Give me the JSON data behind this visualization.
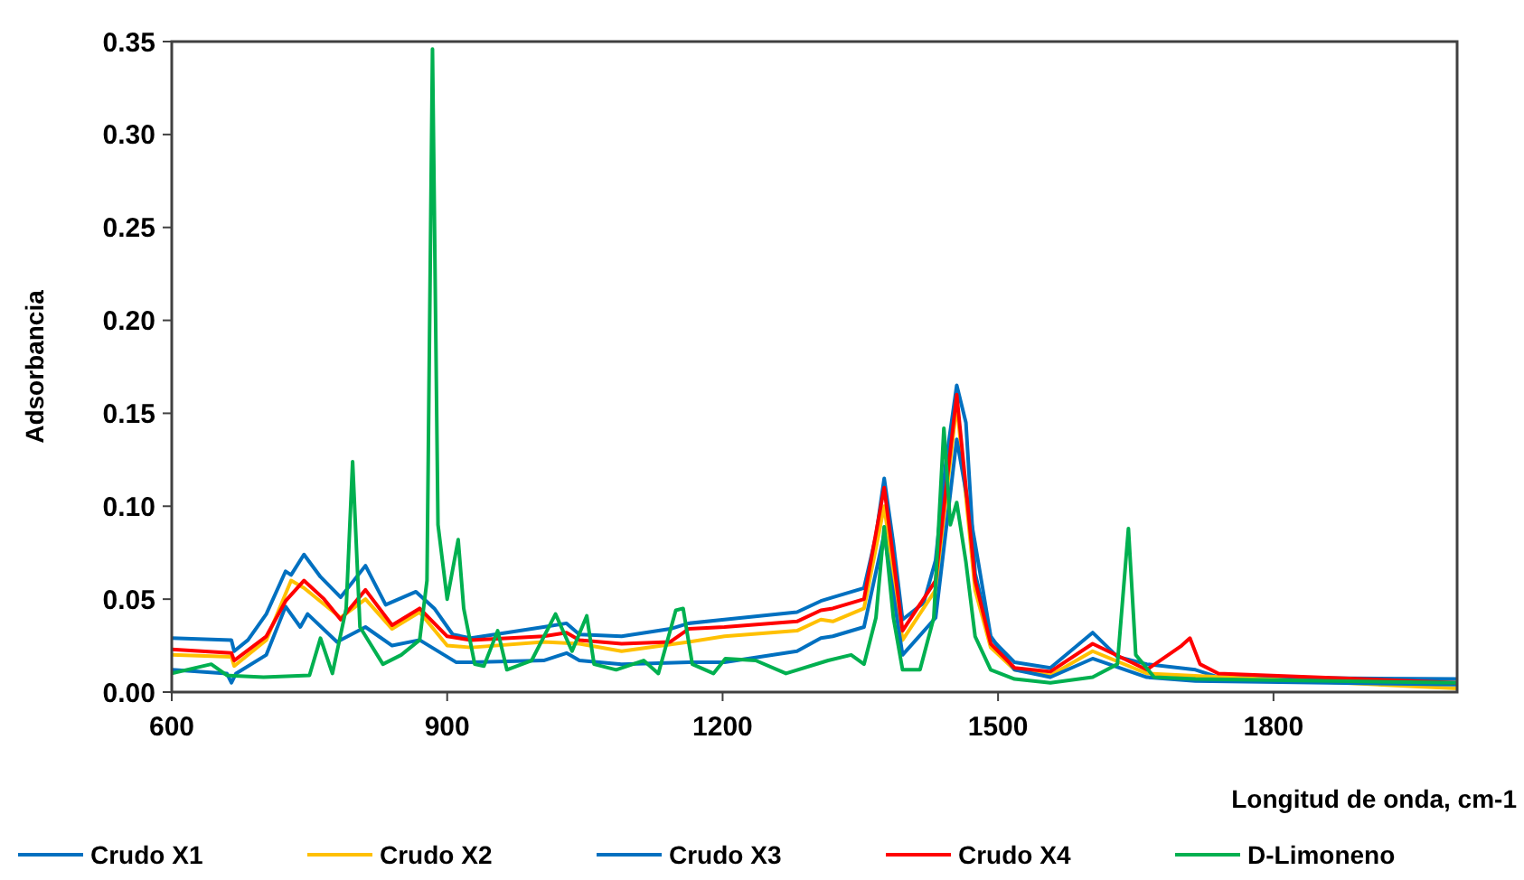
{
  "chart_data": {
    "type": "line",
    "xlabel": "Longitud de onda, cm-1",
    "ylabel": "Adsorbancia",
    "xlim": [
      600,
      2000
    ],
    "ylim": [
      0,
      0.35
    ],
    "xticks": [
      600,
      900,
      1200,
      1500,
      1800
    ],
    "yticks": [
      {
        "value": 0,
        "label": "0.00"
      },
      {
        "value": 0.05,
        "label": "0.05"
      },
      {
        "value": 0.1,
        "label": "0.10"
      },
      {
        "value": 0.15,
        "label": "0.15"
      },
      {
        "value": 0.2,
        "label": "0.20"
      },
      {
        "value": 0.25,
        "label": "0.25"
      },
      {
        "value": 0.3,
        "label": "0.30"
      },
      {
        "value": 0.35,
        "label": "0.35"
      }
    ],
    "grid": false,
    "legend": "bottom",
    "marker": "none",
    "line_style": "solid",
    "series": [
      {
        "name": "Crudo X1",
        "color": "#0070c0",
        "x": [
          600,
          665,
          668,
          683,
          703,
          724,
          730,
          744,
          762,
          784,
          811,
          833,
          866,
          886,
          906,
          926,
          1005,
          1030,
          1044,
          1090,
          1143,
          1163,
          1202,
          1281,
          1307,
          1320,
          1354,
          1367,
          1376,
          1386,
          1396,
          1419,
          1432,
          1443,
          1455,
          1465,
          1475,
          1492,
          1518,
          1557,
          1603,
          1630,
          1662,
          1715,
          1740,
          2000
        ],
        "values": [
          0.029,
          0.028,
          0.022,
          0.028,
          0.042,
          0.065,
          0.063,
          0.074,
          0.062,
          0.051,
          0.068,
          0.047,
          0.054,
          0.045,
          0.031,
          0.029,
          0.035,
          0.037,
          0.031,
          0.03,
          0.034,
          0.037,
          0.039,
          0.043,
          0.049,
          0.051,
          0.056,
          0.084,
          0.115,
          0.08,
          0.039,
          0.048,
          0.071,
          0.123,
          0.165,
          0.145,
          0.064,
          0.029,
          0.016,
          0.013,
          0.032,
          0.019,
          0.015,
          0.012,
          0.008,
          0.007
        ]
      },
      {
        "name": "Crudo X2",
        "color": "#ffc000",
        "x": [
          600,
          665,
          668,
          703,
          730,
          744,
          784,
          811,
          840,
          870,
          900,
          926,
          1005,
          1044,
          1090,
          1163,
          1202,
          1281,
          1307,
          1320,
          1354,
          1376,
          1396,
          1432,
          1455,
          1475,
          1492,
          1518,
          1557,
          1603,
          1662,
          2000
        ],
        "values": [
          0.02,
          0.019,
          0.014,
          0.028,
          0.06,
          0.056,
          0.04,
          0.05,
          0.034,
          0.043,
          0.025,
          0.024,
          0.027,
          0.026,
          0.022,
          0.027,
          0.03,
          0.033,
          0.039,
          0.038,
          0.045,
          0.1,
          0.028,
          0.055,
          0.155,
          0.055,
          0.024,
          0.012,
          0.009,
          0.022,
          0.01,
          0.002
        ]
      },
      {
        "name": "Crudo X3",
        "color": "#0070c0",
        "x": [
          600,
          660,
          665,
          670,
          703,
          724,
          740,
          748,
          780,
          811,
          840,
          870,
          910,
          926,
          1005,
          1030,
          1044,
          1090,
          1163,
          1202,
          1281,
          1307,
          1320,
          1354,
          1376,
          1396,
          1432,
          1455,
          1475,
          1492,
          1518,
          1557,
          1603,
          1662,
          1715,
          2000
        ],
        "values": [
          0.012,
          0.01,
          0.005,
          0.01,
          0.02,
          0.046,
          0.035,
          0.042,
          0.027,
          0.035,
          0.025,
          0.028,
          0.016,
          0.016,
          0.017,
          0.021,
          0.017,
          0.015,
          0.016,
          0.016,
          0.022,
          0.029,
          0.03,
          0.035,
          0.085,
          0.02,
          0.04,
          0.136,
          0.08,
          0.03,
          0.012,
          0.008,
          0.018,
          0.008,
          0.006,
          0.004
        ]
      },
      {
        "name": "Crudo X4",
        "color": "#ff0000",
        "x": [
          600,
          665,
          668,
          703,
          724,
          744,
          766,
          784,
          811,
          840,
          870,
          900,
          926,
          1005,
          1030,
          1044,
          1090,
          1143,
          1163,
          1202,
          1281,
          1307,
          1320,
          1354,
          1376,
          1396,
          1432,
          1455,
          1475,
          1492,
          1518,
          1557,
          1603,
          1662,
          1700,
          1709,
          1720,
          1740,
          2000
        ],
        "values": [
          0.023,
          0.021,
          0.017,
          0.03,
          0.049,
          0.06,
          0.05,
          0.039,
          0.055,
          0.036,
          0.045,
          0.03,
          0.028,
          0.03,
          0.032,
          0.028,
          0.026,
          0.027,
          0.034,
          0.035,
          0.038,
          0.044,
          0.045,
          0.05,
          0.11,
          0.033,
          0.06,
          0.16,
          0.06,
          0.026,
          0.013,
          0.011,
          0.026,
          0.012,
          0.025,
          0.029,
          0.015,
          0.01,
          0.005
        ]
      },
      {
        "name": "D-Limoneno",
        "color": "#00b050",
        "x": [
          600,
          643,
          660,
          700,
          750,
          762,
          775,
          790,
          797,
          805,
          830,
          850,
          870,
          878,
          884,
          890,
          900,
          912,
          918,
          930,
          940,
          955,
          965,
          992,
          1018,
          1036,
          1052,
          1060,
          1084,
          1114,
          1130,
          1149,
          1157,
          1167,
          1190,
          1203,
          1236,
          1269,
          1315,
          1340,
          1354,
          1367,
          1376,
          1386,
          1396,
          1415,
          1430,
          1441,
          1448,
          1455,
          1465,
          1475,
          1492,
          1518,
          1557,
          1603,
          1630,
          1642,
          1650,
          1670,
          1715,
          2000
        ],
        "values": [
          0.01,
          0.015,
          0.009,
          0.008,
          0.009,
          0.029,
          0.01,
          0.045,
          0.124,
          0.035,
          0.015,
          0.02,
          0.028,
          0.06,
          0.346,
          0.09,
          0.05,
          0.082,
          0.045,
          0.015,
          0.014,
          0.033,
          0.012,
          0.017,
          0.042,
          0.022,
          0.041,
          0.015,
          0.012,
          0.017,
          0.01,
          0.044,
          0.045,
          0.015,
          0.01,
          0.018,
          0.017,
          0.01,
          0.017,
          0.02,
          0.015,
          0.04,
          0.089,
          0.04,
          0.012,
          0.012,
          0.04,
          0.142,
          0.09,
          0.102,
          0.07,
          0.03,
          0.012,
          0.007,
          0.005,
          0.008,
          0.015,
          0.088,
          0.02,
          0.008,
          0.007,
          0.005
        ]
      }
    ]
  }
}
